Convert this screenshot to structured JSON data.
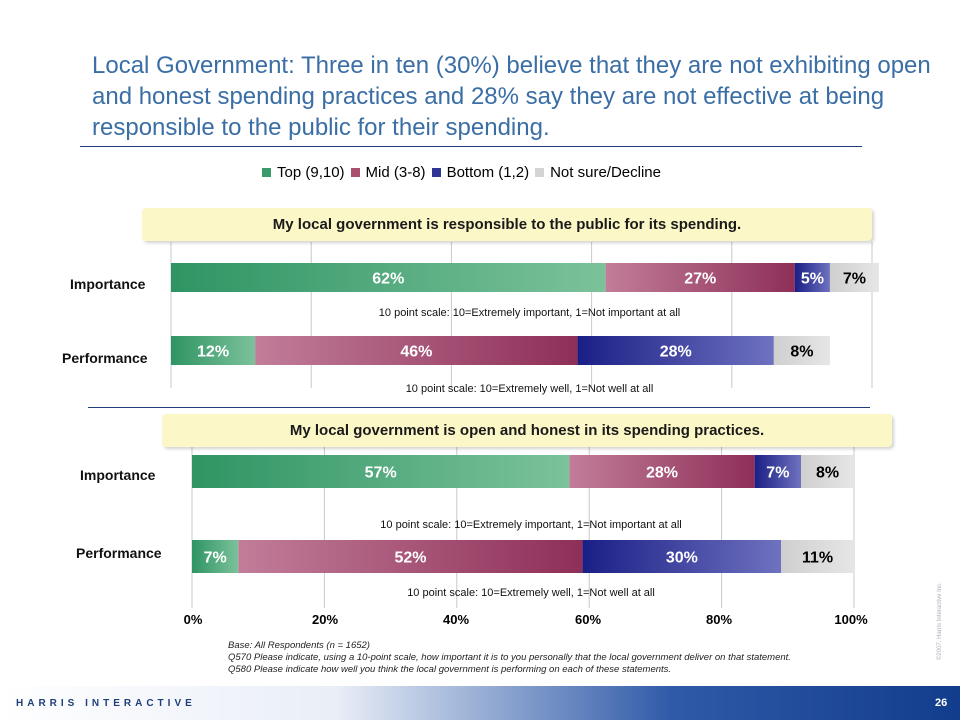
{
  "title": "Local Government: Three in ten (30%) believe that they are not exhibiting open and honest spending practices and 28% say they are not effective at being responsible to the public for their spending.",
  "legend": [
    {
      "label": "Top (9,10)",
      "color": "#3b9a6a"
    },
    {
      "label": "Mid (3-8)",
      "color": "#a8506e"
    },
    {
      "label": "Bottom (1,2)",
      "color": "#2e3592"
    },
    {
      "label": "Not sure/Decline",
      "color": "#d4d4d4"
    }
  ],
  "chart_data": {
    "type": "bar",
    "orientation": "horizontal",
    "stacked": true,
    "xlim": [
      0,
      100
    ],
    "x_ticks": [
      "0%",
      "20%",
      "40%",
      "60%",
      "80%",
      "100%"
    ],
    "series_names": [
      "Top (9,10)",
      "Mid (3-8)",
      "Bottom (1,2)",
      "Not sure/Decline"
    ],
    "panels": [
      {
        "heading": "My local government is responsible to the public for its spending.",
        "rows": [
          {
            "label": "Importance",
            "values": [
              62,
              27,
              5,
              7
            ],
            "value_labels": [
              "62%",
              "27%",
              "5%",
              "7%"
            ],
            "scale_note": "10 point scale: 10=Extremely important, 1=Not important at all"
          },
          {
            "label": "Performance",
            "values": [
              12,
              46,
              28,
              8
            ],
            "value_labels": [
              "12%",
              "46%",
              "28%",
              "8%"
            ],
            "scale_note": "10 point scale: 10=Extremely well, 1=Not well at all"
          }
        ]
      },
      {
        "heading": "My local government is open and honest in its spending practices.",
        "rows": [
          {
            "label": "Importance",
            "values": [
              57,
              28,
              7,
              8
            ],
            "value_labels": [
              "57%",
              "28%",
              "7%",
              "8%"
            ],
            "scale_note": "10 point scale: 10=Extremely important, 1=Not important at all"
          },
          {
            "label": "Performance",
            "values": [
              7,
              52,
              30,
              11
            ],
            "value_labels": [
              "7%",
              "52%",
              "30%",
              "11%"
            ],
            "scale_note": "10 point scale: 10=Extremely well, 1=Not well at all"
          }
        ]
      }
    ]
  },
  "footnote": {
    "base": "Base: All Respondents (n = 1652)",
    "q570": "Q570 Please indicate, using a 10-point scale, how important it is to you personally that the local government deliver on that statement.",
    "q580": "Q580 Please indicate how well you think the local government is performing on each of these statements."
  },
  "side_copyright": "©2007, Harris Interactive Inc.",
  "footer": {
    "brand": "HARRIS INTERACTIVE",
    "page": "26"
  },
  "colors": {
    "title": "#3a6ea5",
    "top_dark": "#2f9463",
    "top_light": "#7cc29b",
    "mid_dark": "#8e2f58",
    "mid_light": "#c17d99",
    "bottom_dark": "#1a1f86",
    "bottom_light": "#6f72bf",
    "notsure": "#d4d4d4"
  }
}
